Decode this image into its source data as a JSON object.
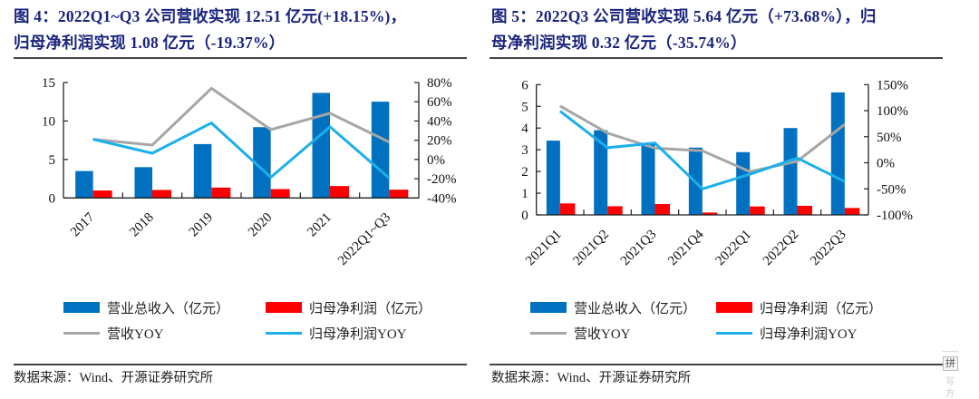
{
  "figures": [
    {
      "title_line1": "图 4：2022Q1~Q3 公司营收实现 12.51 亿元(+18.15%)，",
      "title_line2": "归母净利润实现 1.08 亿元（-19.37%）",
      "source": "数据来源：Wind、开源证券研究所"
    },
    {
      "title_line1": "图 5：2022Q3 公司营收实现 5.64 亿元（+73.68%），归",
      "title_line2": "母净利润实现 0.32 亿元（-35.74%）",
      "source": "数据来源：Wind、开源证券研究所"
    }
  ],
  "colors": {
    "revenue_bar": "#0070c0",
    "profit_bar": "#ff0000",
    "revenue_yoy_line": "#a6a6a6",
    "profit_yoy_line": "#1bb0ea",
    "title": "#1a237e"
  },
  "chart_data": [
    {
      "type": "bar",
      "title": "图 4：2022Q1~Q3 公司营收实现 12.51 亿元(+18.15%)，归母净利润实现 1.08 亿元（-19.37%）",
      "categories": [
        "2017",
        "2018",
        "2019",
        "2020",
        "2021",
        "2022Q1~Q3"
      ],
      "series": [
        {
          "name": "营业总收入（亿元）",
          "kind": "bar",
          "axis": "left",
          "values": [
            3.5,
            4.0,
            7.0,
            9.2,
            13.65,
            12.51
          ]
        },
        {
          "name": "归母净利润（亿元）",
          "kind": "bar",
          "axis": "left",
          "values": [
            0.97,
            1.04,
            1.35,
            1.15,
            1.55,
            1.08
          ]
        },
        {
          "name": "营收YOY",
          "kind": "line",
          "axis": "right",
          "values": [
            21,
            15,
            74,
            31,
            48,
            18.15
          ]
        },
        {
          "name": "归母净利润YOY",
          "kind": "line",
          "axis": "right",
          "values": [
            21,
            6.5,
            38,
            -18.5,
            34,
            -19.37
          ]
        }
      ],
      "y_left": {
        "min": 0,
        "max": 15,
        "ticks": [
          "0",
          "5",
          "10",
          "15"
        ],
        "tick_values": [
          0,
          5,
          10,
          15
        ]
      },
      "y_right": {
        "min": -40,
        "max": 80,
        "ticks": [
          "-40%",
          "-20%",
          "0%",
          "20%",
          "40%",
          "60%",
          "80%"
        ],
        "tick_values": [
          -40,
          -20,
          0,
          20,
          40,
          60,
          80
        ]
      },
      "xlabel": "",
      "ylabel": "",
      "grid": false,
      "legend_position": "bottom",
      "legend": [
        "营业总收入（亿元）",
        "归母净利润（亿元）",
        "营收YOY",
        "归母净利润YOY"
      ]
    },
    {
      "type": "bar",
      "title": "图 5：2022Q3 公司营收实现 5.64 亿元（+73.68%），归母净利润实现 0.32 亿元（-35.74%）",
      "categories": [
        "2021Q1",
        "2021Q2",
        "2021Q3",
        "2021Q4",
        "2022Q1",
        "2022Q2",
        "2022Q3"
      ],
      "series": [
        {
          "name": "营业总收入（亿元）",
          "kind": "bar",
          "axis": "left",
          "values": [
            3.42,
            3.9,
            3.26,
            3.1,
            2.89,
            4.0,
            5.64
          ]
        },
        {
          "name": "归母净利润（亿元）",
          "kind": "bar",
          "axis": "left",
          "values": [
            0.53,
            0.4,
            0.5,
            0.11,
            0.39,
            0.42,
            0.32
          ]
        },
        {
          "name": "营收YOY",
          "kind": "line",
          "axis": "right",
          "values": [
            109,
            57,
            28,
            23,
            -17,
            3,
            73.68
          ]
        },
        {
          "name": "归母净利润YOY",
          "kind": "line",
          "axis": "right",
          "values": [
            99,
            29,
            38,
            -50,
            -22,
            9,
            -35.74
          ]
        }
      ],
      "y_left": {
        "min": 0,
        "max": 6,
        "ticks": [
          "0",
          "1",
          "2",
          "3",
          "4",
          "5",
          "6"
        ],
        "tick_values": [
          0,
          1,
          2,
          3,
          4,
          5,
          6
        ]
      },
      "y_right": {
        "min": -100,
        "max": 150,
        "ticks": [
          "-100%",
          "-50%",
          "0%",
          "50%",
          "100%",
          "150%"
        ],
        "tick_values": [
          -100,
          -50,
          0,
          50,
          100,
          150
        ]
      },
      "xlabel": "",
      "ylabel": "",
      "grid": false,
      "legend_position": "bottom",
      "legend": [
        "营业总收入（亿元）",
        "归母净利润（亿元）",
        "营收YOY",
        "归母净利润YOY"
      ]
    }
  ],
  "ime_widget": {
    "label": "拼",
    "faint1": "写",
    "faint2": "方"
  }
}
